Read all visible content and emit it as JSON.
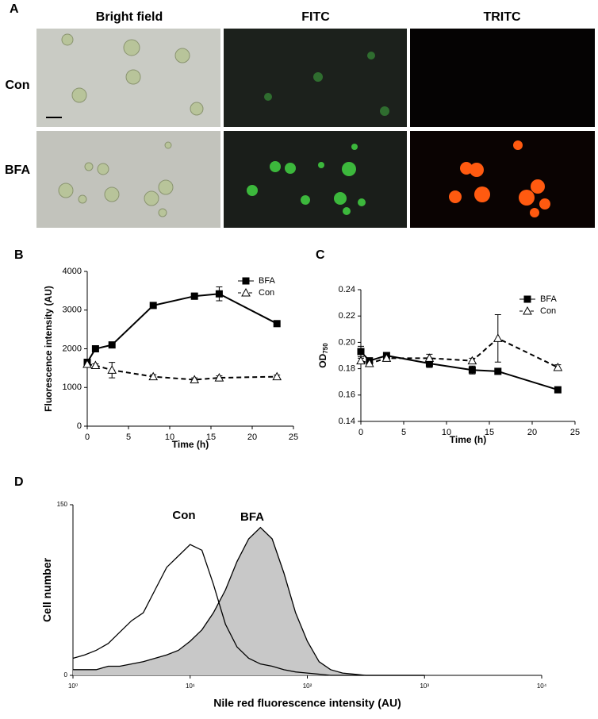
{
  "panel_a": {
    "label": "A",
    "columns": [
      "Bright field",
      "FITC",
      "TRITC"
    ],
    "rows": [
      "Con",
      "BFA"
    ]
  },
  "chart_data": [
    {
      "type": "line",
      "panel_label": "B",
      "xlabel": "Time (h)",
      "ylabel": "Fluorescence intensity (AU)",
      "x": [
        0,
        1,
        3,
        8,
        13,
        16,
        23
      ],
      "xlim": [
        0,
        25
      ],
      "xticks": [
        0,
        5,
        10,
        15,
        20,
        25
      ],
      "ylim": [
        0,
        4000
      ],
      "yticks": [
        0,
        1000,
        2000,
        3000,
        4000
      ],
      "legend": "upper right",
      "series": [
        {
          "name": "BFA",
          "color": "#000000",
          "marker": "square",
          "line_style": "solid",
          "values": [
            1650,
            2000,
            2100,
            3120,
            3360,
            3420,
            2650
          ],
          "errors": [
            80,
            40,
            40,
            40,
            80,
            180,
            30
          ]
        },
        {
          "name": "Con",
          "color": "#000000",
          "marker": "triangle",
          "line_style": "dashed",
          "values": [
            1600,
            1570,
            1450,
            1280,
            1200,
            1250,
            1280
          ],
          "errors": [
            20,
            40,
            200,
            50,
            50,
            50,
            40
          ]
        }
      ]
    },
    {
      "type": "line",
      "panel_label": "C",
      "xlabel": "Time (h)",
      "ylabel": "OD",
      "ylabel_sub": "750",
      "x": [
        0,
        1,
        3,
        8,
        13,
        16,
        23
      ],
      "xlim": [
        0,
        25
      ],
      "xticks": [
        0,
        5,
        10,
        15,
        20,
        25
      ],
      "ylim": [
        0.14,
        0.24
      ],
      "yticks": [
        0.14,
        0.16,
        0.18,
        {
          "value": 0.2,
          "label": "0.20"
        },
        0.22,
        0.24
      ],
      "legend": "upper right",
      "series": [
        {
          "name": "BFA",
          "color": "#000000",
          "marker": "square",
          "line_style": "solid",
          "values": [
            0.193,
            0.186,
            0.19,
            0.184,
            0.179,
            0.178,
            0.164
          ],
          "errors": [
            0.004,
            0.002,
            0.002,
            0.003,
            0.003,
            0.001,
            0.002
          ]
        },
        {
          "name": "Con",
          "color": "#000000",
          "marker": "triangle",
          "line_style": "dashed",
          "values": [
            0.186,
            0.184,
            0.188,
            0.188,
            0.186,
            0.203,
            0.181
          ],
          "errors": [
            0.002,
            0.002,
            0.002,
            0.003,
            0.002,
            0.018,
            0.002
          ]
        }
      ]
    },
    {
      "type": "area",
      "panel_label": "D",
      "xlabel": "Nile red fluorescence intensity (AU)",
      "ylabel": "Cell number",
      "xscale": "log",
      "xlim": [
        1,
        10000
      ],
      "xticks": [
        {
          "value": 1,
          "label": "10⁰"
        },
        {
          "value": 10,
          "label": "10¹"
        },
        {
          "value": 100,
          "label": "10²"
        },
        {
          "value": 1000,
          "label": "10³"
        },
        {
          "value": 10000,
          "label": "10⁴"
        }
      ],
      "ylim": [
        0,
        150
      ],
      "yticks": [
        0,
        150
      ],
      "annotations": [
        "Con",
        "BFA"
      ],
      "x": [
        1,
        1.26,
        1.58,
        2,
        2.51,
        3.16,
        3.98,
        5.01,
        6.31,
        7.94,
        10,
        12.6,
        15.8,
        20,
        25.1,
        31.6,
        39.8,
        50.1,
        63.1,
        79.4,
        100,
        126,
        158,
        200,
        251,
        316,
        398,
        501,
        631,
        794,
        1000
      ],
      "series": [
        {
          "name": "BFA",
          "color": "#000000",
          "fill": "#c8c8c8",
          "values": [
            5,
            5,
            5,
            8,
            8,
            10,
            12,
            15,
            18,
            22,
            30,
            40,
            55,
            75,
            100,
            120,
            130,
            120,
            90,
            55,
            30,
            12,
            5,
            2,
            1,
            0,
            0,
            0,
            0,
            0,
            0
          ]
        },
        {
          "name": "Con",
          "color": "#000000",
          "values": [
            15,
            18,
            22,
            28,
            38,
            48,
            55,
            75,
            95,
            105,
            115,
            110,
            80,
            45,
            25,
            15,
            10,
            8,
            5,
            3,
            2,
            1,
            0,
            0,
            0,
            0,
            0,
            0,
            0,
            0,
            0
          ]
        }
      ]
    }
  ]
}
